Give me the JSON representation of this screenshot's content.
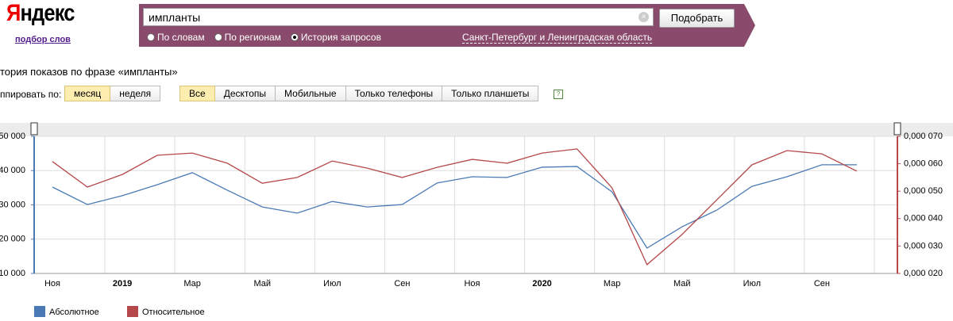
{
  "header": {
    "logo": "Яндекс",
    "subtitle": "подбор слов",
    "query": "импланты",
    "button": "Подобрать",
    "modes": [
      "По словам",
      "По регионам",
      "История запросов"
    ],
    "selected_mode": 2,
    "region": "Санкт-Петербург и Ленинградская область"
  },
  "toolbar": {
    "title": "тория показов по фразе «импланты»",
    "group_label": "ппировать по:",
    "group_options": [
      "месяц",
      "неделя"
    ],
    "group_selected": 0,
    "device_options": [
      "Все",
      "Десктопы",
      "Мобильные",
      "Только телефоны",
      "Только планшеты"
    ],
    "device_selected": 0,
    "help": "?"
  },
  "chart_data": {
    "type": "line",
    "categories": [
      "Ноя",
      null,
      "2019",
      null,
      "Мар",
      null,
      "Май",
      null,
      "Июл",
      null,
      "Сен",
      null,
      "Ноя",
      null,
      "2020",
      null,
      "Мар",
      null,
      "Май",
      null,
      "Июл",
      null,
      "Сен",
      null
    ],
    "series": [
      {
        "name": "Абсолютное",
        "color": "#4a7ab5",
        "axis": "y",
        "values": [
          35200,
          30100,
          32700,
          35900,
          39400,
          34300,
          29400,
          27600,
          31000,
          29400,
          30100,
          36400,
          38200,
          38000,
          41000,
          41200,
          33800,
          17400,
          23600,
          28500,
          35400,
          38200,
          41700,
          41700
        ]
      },
      {
        "name": "Относительное",
        "color": "#b5484a",
        "axis": "y2",
        "values": [
          6.08e-05,
          5.15e-05,
          5.61e-05,
          6.31e-05,
          6.39e-05,
          6.02e-05,
          5.29e-05,
          5.5e-05,
          6.1e-05,
          5.84e-05,
          5.5e-05,
          5.87e-05,
          6.16e-05,
          6.02e-05,
          6.39e-05,
          6.54e-05,
          5.12e-05,
          2.32e-05,
          3.42e-05,
          4.69e-05,
          5.96e-05,
          6.48e-05,
          6.36e-05,
          5.73e-05
        ]
      }
    ],
    "ylim": [
      10000,
      50000
    ],
    "yticks": [
      {
        "value": 10000,
        "label": "10 000"
      },
      {
        "value": 20000,
        "label": "20 000"
      },
      {
        "value": 30000,
        "label": "30 000"
      },
      {
        "value": 40000,
        "label": "40 000"
      },
      {
        "value": 50000,
        "label": "50 000"
      }
    ],
    "y2lim": [
      2e-05,
      7e-05
    ],
    "y2ticks": [
      {
        "value": 2e-05,
        "label": "0,000 020"
      },
      {
        "value": 3e-05,
        "label": "0,000 030"
      },
      {
        "value": 4e-05,
        "label": "0,000 040"
      },
      {
        "value": 5e-05,
        "label": "0,000 050"
      },
      {
        "value": 6e-05,
        "label": "0,000 060"
      },
      {
        "value": 7e-05,
        "label": "0,000 070"
      }
    ],
    "grid": true
  }
}
